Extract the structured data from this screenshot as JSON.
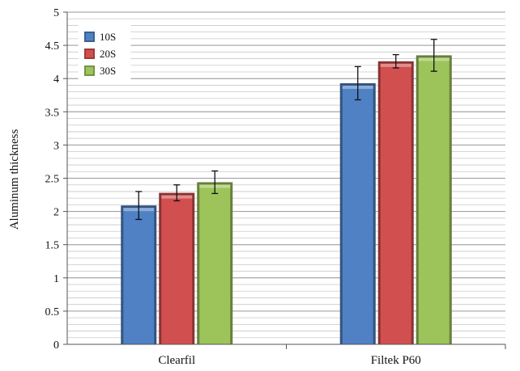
{
  "chart_data": {
    "type": "bar",
    "title": "",
    "xlabel": "",
    "ylabel": "Aluminum thickness",
    "categories": [
      "Clearfil",
      "Filtek P60"
    ],
    "series": [
      {
        "name": "10S",
        "color": "#4f81c4",
        "values": [
          2.09,
          3.93
        ],
        "errors": [
          0.21,
          0.25
        ]
      },
      {
        "name": "20S",
        "color": "#d24f4f",
        "values": [
          2.28,
          4.26
        ],
        "errors": [
          0.12,
          0.1
        ]
      },
      {
        "name": "30S",
        "color": "#9dc45a",
        "values": [
          2.44,
          4.35
        ],
        "errors": [
          0.17,
          0.24
        ]
      }
    ],
    "ylim": [
      0,
      5
    ],
    "yticks": [
      "0",
      "0.5",
      "1",
      "1.5",
      "2",
      "2.5",
      "3",
      "3.5",
      "4",
      "4.5",
      "5"
    ],
    "ytick_values": [
      0,
      0.5,
      1,
      1.5,
      2,
      2.5,
      3,
      3.5,
      4,
      4.5,
      5
    ],
    "minor_step": 0.1,
    "grid": true,
    "legend_position": "top-left"
  }
}
